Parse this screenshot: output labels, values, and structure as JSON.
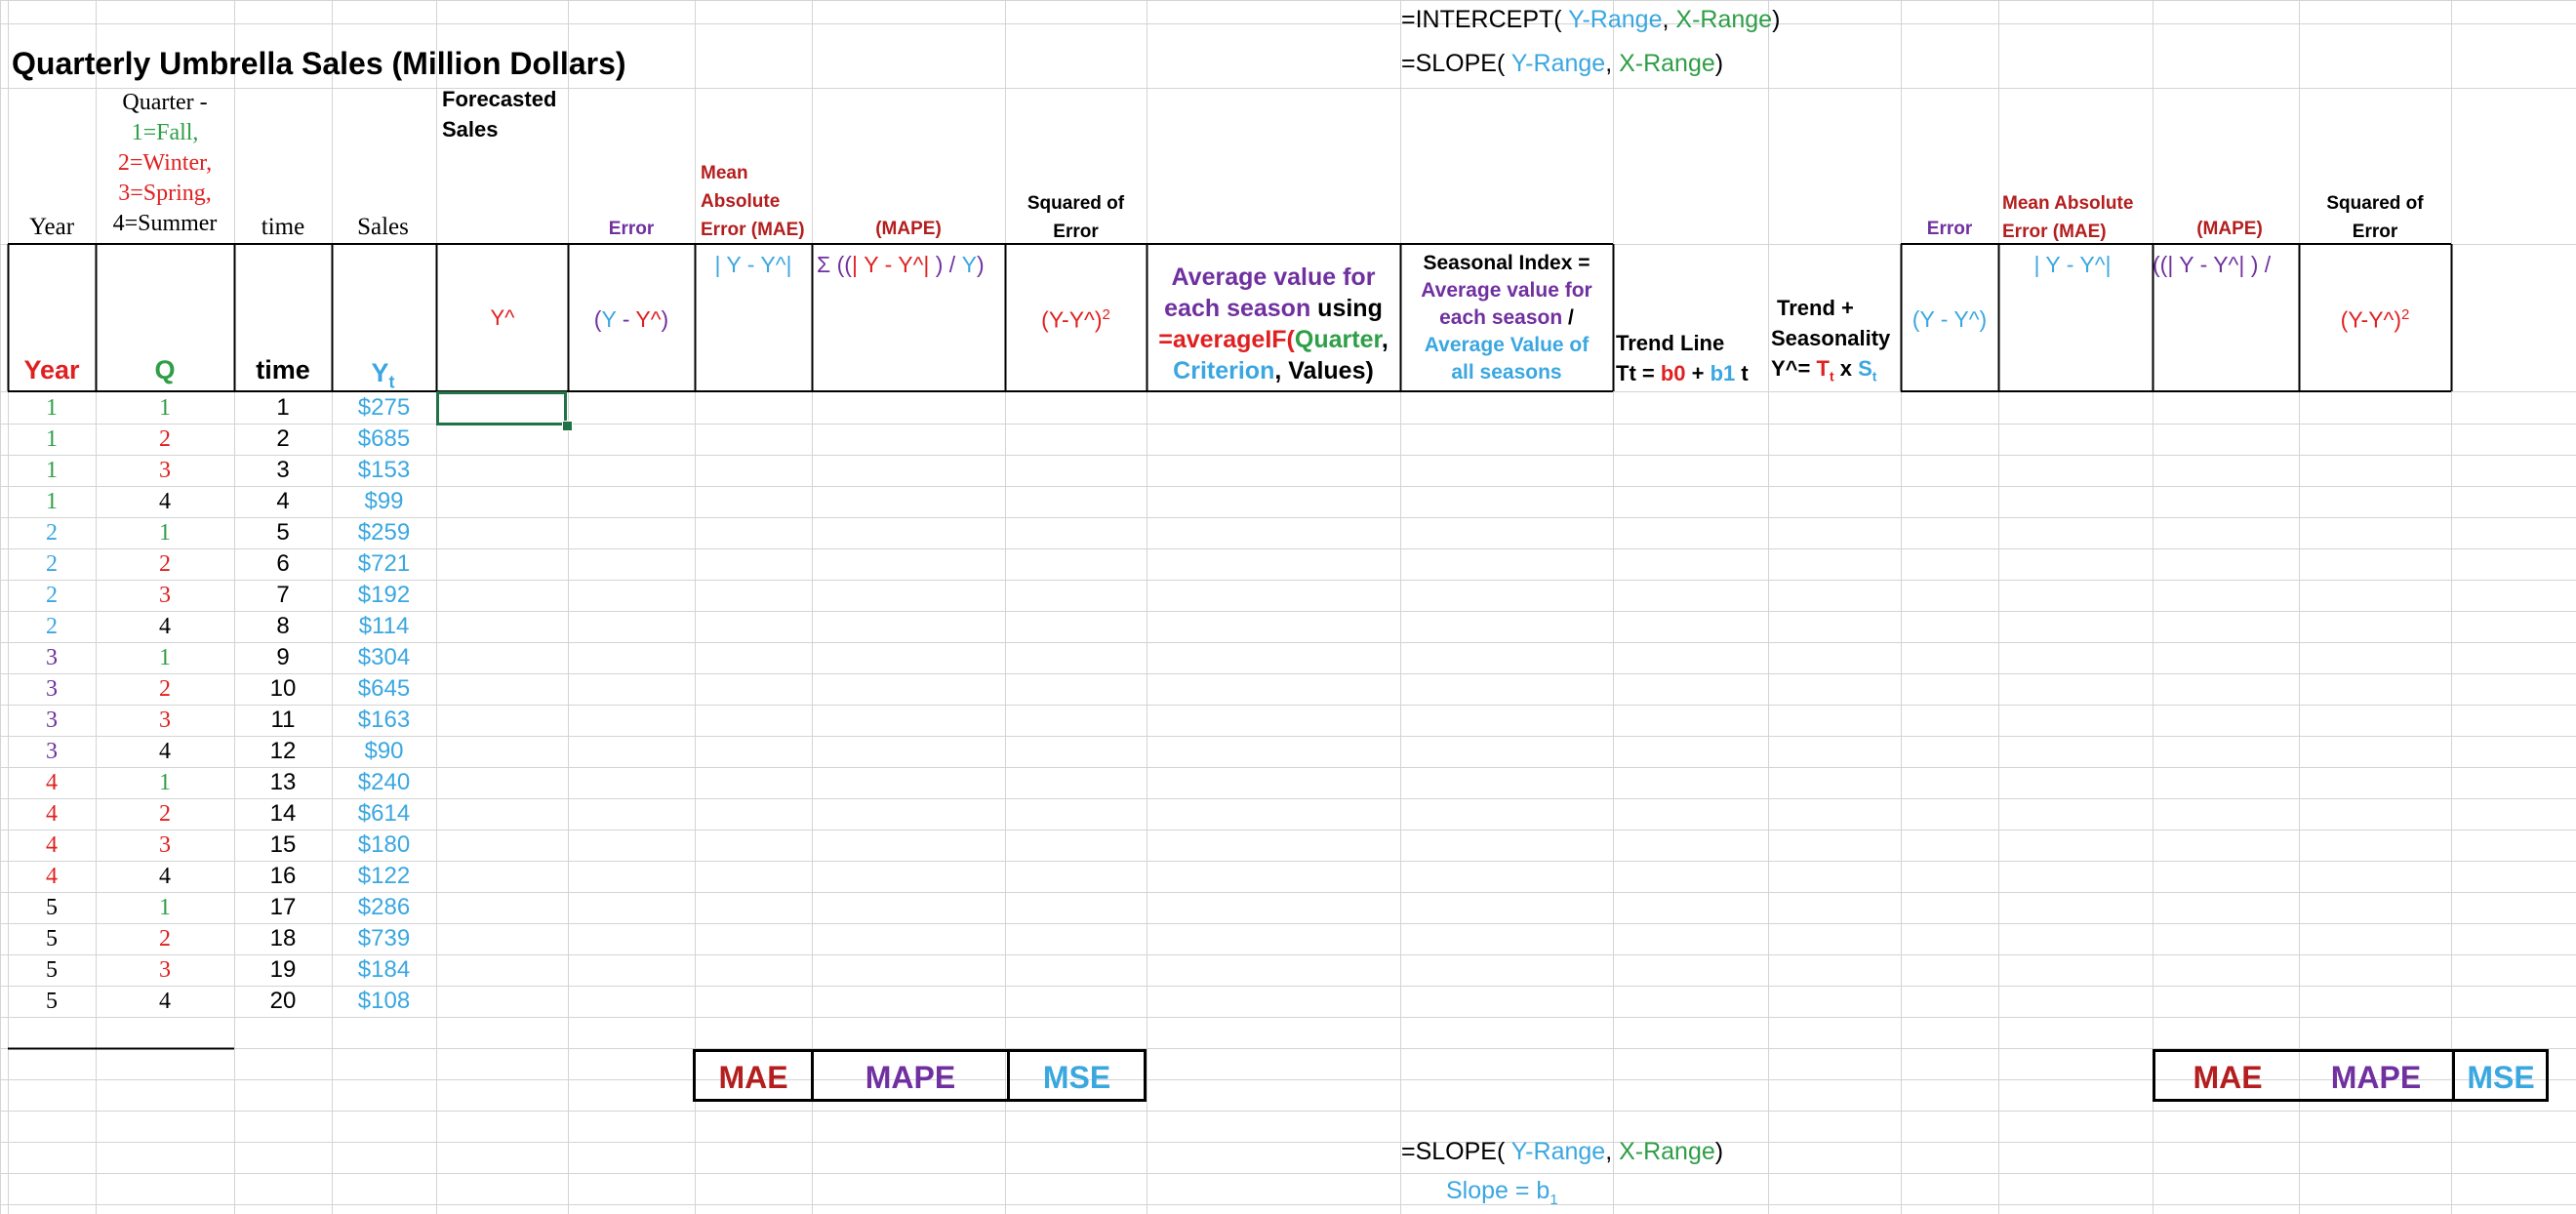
{
  "formulas": {
    "intercept_prefix": "=INTERCEPT(",
    "slope_prefix": "=SLOPE(",
    "y_range": " Y-Range",
    "comma": ", ",
    "x_range": "X-Range",
    "close": ")",
    "slope_label_a": "Slope  = b",
    "slope_label_sub": "1"
  },
  "title": "Quarterly Umbrella Sales (Million Dollars)",
  "header_row1": {
    "year": "Year",
    "quarter_prefix": "Quarter -",
    "quarter_fall": "1=Fall,",
    "quarter_winter": "2=Winter,",
    "quarter_spring": "3=Spring,",
    "quarter_summer": "4=Summer",
    "time": "time",
    "sales": "Sales",
    "forecasted": "Forecasted",
    "forecasted_sales": "Sales",
    "error": "Error",
    "mae_1": "Mean",
    "mae_2": "Absolute",
    "mae_3": "Error (MAE)",
    "mape": "(MAPE)",
    "sq_1": "Squared of",
    "sq_2": "Error",
    "error_r": "Error",
    "mae_r1": "Mean Absolute",
    "mae_r2": "Error (MAE)",
    "mape_r": "(MAPE)",
    "sq_r1": "Squared of",
    "sq_r2": "Error"
  },
  "header_row2": {
    "year": "Year",
    "q": "Q",
    "time": "time",
    "yt": "Y",
    "yt_sub": "t",
    "yhat": "Y^",
    "err_open": "(",
    "err_y": "Y",
    "err_minus": " - ",
    "err_yhat": "Y^",
    "err_close": ")",
    "abs_err": "| Y - Y^|",
    "mape_formula_a": "Σ ((",
    "mape_formula_b": "| Y - Y^| ",
    "mape_formula_c": ") / ",
    "mape_formula_d": "Y",
    "mape_formula_e": ")",
    "sq_formula": "(Y-Y^)",
    "sq_exp": "2",
    "avg_1": "Average value for",
    "avg_2a": "each season",
    "avg_2b": " using",
    "avg_3a": "=averageIF(",
    "avg_3b": "Quarter",
    "avg_3c": ",",
    "avg_4a": "Criterion",
    "avg_4b": ", Values)",
    "si_1": "Seasonal Index =",
    "si_2": "Average value for",
    "si_3a": "each season",
    "si_3b": " /",
    "si_4": "Average  Value of",
    "si_5": "all seasons",
    "trend_1": "Trend Line",
    "trend_2a": "Tt = ",
    "trend_2b": "b0",
    "trend_2c": "  + ",
    "trend_2d": "b1",
    "trend_2e": " t",
    "ts_1": "Trend +",
    "ts_2": "Seasonality",
    "ts_3a": "Y^= ",
    "ts_3b": "T",
    "ts_3c": "t",
    "ts_3d": " x ",
    "ts_3e": "S",
    "ts_3f": "t",
    "r_err": "(Y - Y^)",
    "r_abs": "| Y - Y^|",
    "r_mape": "((| Y - Y^| ) /",
    "r_sq": "(Y-Y^)",
    "r_sq_exp": "2"
  },
  "rows": [
    {
      "year": "1",
      "q": "1",
      "time": "1",
      "sales": "$275"
    },
    {
      "year": "1",
      "q": "2",
      "time": "2",
      "sales": "$685"
    },
    {
      "year": "1",
      "q": "3",
      "time": "3",
      "sales": "$153"
    },
    {
      "year": "1",
      "q": "4",
      "time": "4",
      "sales": "$99"
    },
    {
      "year": "2",
      "q": "1",
      "time": "5",
      "sales": "$259"
    },
    {
      "year": "2",
      "q": "2",
      "time": "6",
      "sales": "$721"
    },
    {
      "year": "2",
      "q": "3",
      "time": "7",
      "sales": "$192"
    },
    {
      "year": "2",
      "q": "4",
      "time": "8",
      "sales": "$114"
    },
    {
      "year": "3",
      "q": "1",
      "time": "9",
      "sales": "$304"
    },
    {
      "year": "3",
      "q": "2",
      "time": "10",
      "sales": "$645"
    },
    {
      "year": "3",
      "q": "3",
      "time": "11",
      "sales": "$163"
    },
    {
      "year": "3",
      "q": "4",
      "time": "12",
      "sales": "$90"
    },
    {
      "year": "4",
      "q": "1",
      "time": "13",
      "sales": "$240"
    },
    {
      "year": "4",
      "q": "2",
      "time": "14",
      "sales": "$614"
    },
    {
      "year": "4",
      "q": "3",
      "time": "15",
      "sales": "$180"
    },
    {
      "year": "4",
      "q": "4",
      "time": "16",
      "sales": "$122"
    },
    {
      "year": "5",
      "q": "1",
      "time": "17",
      "sales": "$286"
    },
    {
      "year": "5",
      "q": "2",
      "time": "18",
      "sales": "$739"
    },
    {
      "year": "5",
      "q": "3",
      "time": "19",
      "sales": "$184"
    },
    {
      "year": "5",
      "q": "4",
      "time": "20",
      "sales": "$108"
    }
  ],
  "year_colors": {
    "1": "#2e9e47",
    "2": "#3aa7e0",
    "3": "#7030a0",
    "4": "#e02020",
    "5": "#000000"
  },
  "q_colors": {
    "1": "#2e9e47",
    "2": "#e02020",
    "3": "#e02020",
    "4": "#000000"
  },
  "summary_left": {
    "mae": "MAE",
    "mape": "MAPE",
    "mse": "MSE"
  },
  "summary_right": {
    "mae": "MAE",
    "mape": "MAPE",
    "mse": "MSE"
  },
  "colors": {
    "green": "#2e9e47",
    "red": "#e02020",
    "blue": "#3aa7e0",
    "purple": "#7030a0",
    "dark_red": "#b41e1e",
    "grid": "#d4d4d4",
    "selection": "#217346"
  }
}
